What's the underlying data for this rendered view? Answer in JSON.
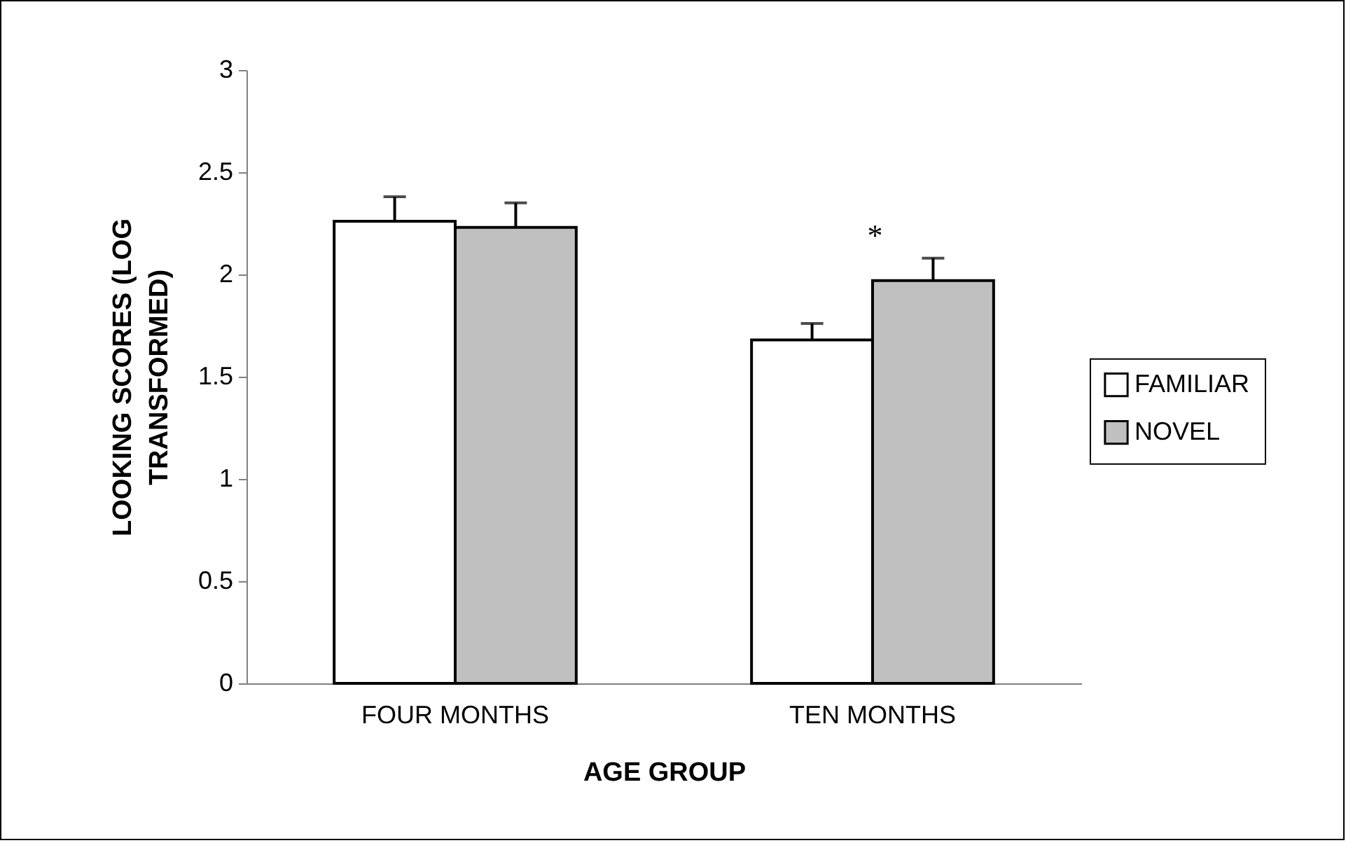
{
  "chart_data": {
    "type": "bar",
    "xlabel": "AGE GROUP",
    "ylabel": "LOOKING SCORES (LOG TRANSFORMED)",
    "categories": [
      "FOUR MONTHS",
      "TEN MONTHS"
    ],
    "series": [
      {
        "name": "FAMILIAR",
        "color": "#ffffff",
        "values": [
          2.26,
          1.68
        ],
        "errors": [
          [
            2.26,
            2.38
          ],
          [
            1.68,
            1.76
          ]
        ]
      },
      {
        "name": "NOVEL",
        "color": "#c0c0c0",
        "values": [
          2.23,
          1.97
        ],
        "errors": [
          [
            2.23,
            2.35
          ],
          [
            1.97,
            2.08
          ]
        ]
      }
    ],
    "ylim": [
      0,
      3
    ],
    "yticks": [
      0,
      0.5,
      1,
      1.5,
      2,
      2.5,
      3
    ],
    "grid": false,
    "legend": "right",
    "annotations": [
      "*"
    ]
  }
}
